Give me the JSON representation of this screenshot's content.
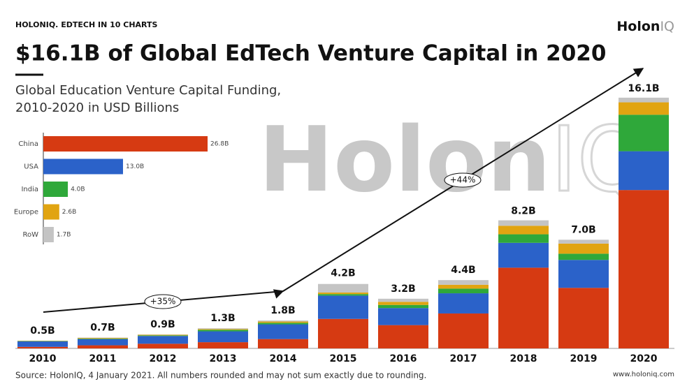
{
  "chart_data": {
    "type": "stacked_bar",
    "kicker": [
      "HOLONIQ.",
      "EDTECH IN 10 CHARTS"
    ],
    "logo": [
      "Holon",
      "IQ"
    ],
    "watermark": [
      "Holon",
      "IQ"
    ],
    "title": "$16.1B of Global EdTech Venture Capital in 2020",
    "subtitle": [
      "Global Education Venture Capital Funding,",
      "2010-2020 in USD Billions"
    ],
    "categories": [
      "2010",
      "2011",
      "2012",
      "2013",
      "2014",
      "2015",
      "2016",
      "2017",
      "2018",
      "2019",
      "2020"
    ],
    "series": [
      {
        "name": "China",
        "color": "#d63a12",
        "values": [
          0.1,
          0.2,
          0.3,
          0.4,
          0.6,
          1.9,
          1.5,
          2.25,
          5.2,
          3.9,
          10.2
        ],
        "total": 26.8,
        "total_label": "26.8B"
      },
      {
        "name": "USA",
        "color": "#2b62c9",
        "values": [
          0.35,
          0.4,
          0.5,
          0.7,
          0.95,
          1.5,
          1.1,
          1.3,
          1.6,
          1.8,
          2.5
        ],
        "total": 13.0,
        "total_label": "13.0B"
      },
      {
        "name": "India",
        "color": "#2fa83a",
        "values": [
          0.02,
          0.03,
          0.04,
          0.1,
          0.1,
          0.1,
          0.2,
          0.3,
          0.55,
          0.4,
          2.35
        ],
        "total": 4.0,
        "total_label": "4.0B"
      },
      {
        "name": "Europe",
        "color": "#e1a411",
        "values": [
          0.02,
          0.04,
          0.04,
          0.05,
          0.08,
          0.1,
          0.2,
          0.25,
          0.55,
          0.65,
          0.8
        ],
        "total": 2.6,
        "total_label": "2.6B"
      },
      {
        "name": "RoW",
        "color": "#c4c4c4",
        "values": [
          0.01,
          0.03,
          0.02,
          0.05,
          0.07,
          0.55,
          0.2,
          0.3,
          0.35,
          0.25,
          0.3
        ],
        "total": 1.7,
        "total_label": "1.7B"
      }
    ],
    "totals": {
      "values": [
        0.5,
        0.7,
        0.9,
        1.3,
        1.8,
        4.2,
        3.2,
        4.4,
        8.2,
        7.0,
        16.1
      ],
      "value_labels": [
        "0.5B",
        "0.7B",
        "0.9B",
        "1.3B",
        "1.8B",
        "4.2B",
        "3.2B",
        "4.4B",
        "8.2B",
        "7.0B",
        "16.1B"
      ]
    },
    "ylim": [
      0,
      16.1
    ],
    "annotations": [
      "+35%",
      "+44%"
    ],
    "source": "Source: HolonIQ, 4 January 2021. All numbers rounded and may not sum exactly due to rounding.",
    "website": "www.holoniq.com"
  }
}
